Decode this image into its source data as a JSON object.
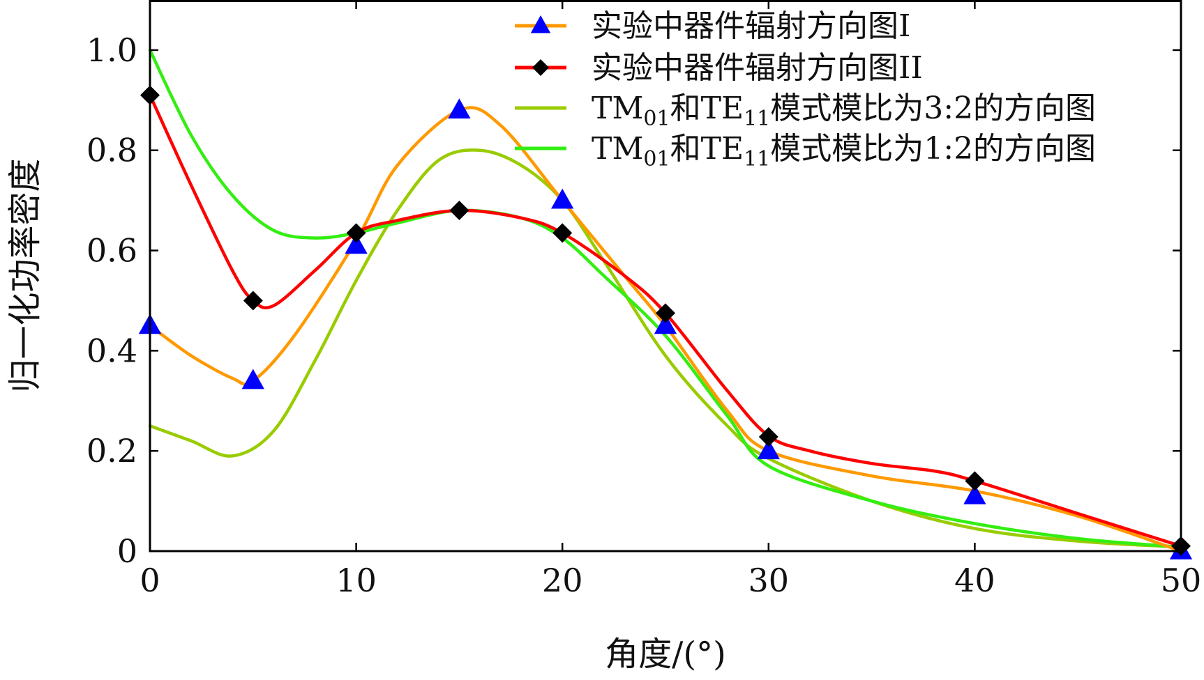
{
  "chart_data": {
    "type": "line",
    "title": "",
    "xlabel": "角度/(°)",
    "ylabel": "归一化功率密度",
    "xlim": [
      0,
      50
    ],
    "ylim": [
      0,
      1.1
    ],
    "x_ticks": [
      0,
      10,
      20,
      30,
      40,
      50
    ],
    "x_tick_labels": [
      "0",
      "10",
      "20",
      "30",
      "40",
      "50"
    ],
    "y_ticks": [
      0,
      0.2,
      0.4,
      0.6,
      0.8,
      1.0
    ],
    "y_tick_labels": [
      "0",
      "0.2",
      "0.4",
      "0.6",
      "0.8",
      "1.0"
    ],
    "grid": false,
    "legend_position": "top-right",
    "series": [
      {
        "name": "实验中器件辐射方向图I",
        "legend_parts": [
          "实验中器件辐射方向图I"
        ],
        "color": "#ff9900",
        "marker": "triangle",
        "marker_color": "#0000ff",
        "x": [
          0,
          2,
          4,
          5,
          7,
          10,
          12,
          15,
          17,
          20,
          23,
          25,
          28,
          30,
          35,
          40,
          45,
          50
        ],
        "values": [
          0.45,
          0.39,
          0.345,
          0.34,
          0.43,
          0.62,
          0.77,
          0.88,
          0.85,
          0.7,
          0.55,
          0.45,
          0.28,
          0.2,
          0.15,
          0.12,
          0.07,
          0.0
        ],
        "marker_x": [
          0,
          5,
          10,
          15,
          20,
          25,
          30,
          40,
          50
        ],
        "marker_values": [
          0.45,
          0.34,
          0.61,
          0.88,
          0.7,
          0.45,
          0.2,
          0.11,
          0.0
        ]
      },
      {
        "name": "实验中器件辐射方向图II",
        "legend_parts": [
          "实验中器件辐射方向图II"
        ],
        "color": "#ff0000",
        "marker": "diamond",
        "marker_color": "#000000",
        "x": [
          0,
          2,
          4,
          5,
          6,
          8,
          10,
          12,
          15,
          18,
          20,
          23,
          25,
          28,
          30,
          32,
          35,
          38,
          40,
          45,
          50
        ],
        "values": [
          0.91,
          0.73,
          0.56,
          0.5,
          0.49,
          0.56,
          0.635,
          0.66,
          0.68,
          0.665,
          0.635,
          0.55,
          0.475,
          0.32,
          0.23,
          0.2,
          0.175,
          0.16,
          0.14,
          0.075,
          0.01
        ],
        "marker_x": [
          0,
          5,
          10,
          15,
          20,
          25,
          30,
          40,
          50
        ],
        "marker_values": [
          0.91,
          0.5,
          0.635,
          0.68,
          0.635,
          0.475,
          0.228,
          0.14,
          0.01
        ]
      },
      {
        "name": "TM01和TE11模式模比为3:2的方向图",
        "legend_parts": [
          "TM",
          "01",
          "和TE",
          "11",
          "模式模比为3:2的方向图"
        ],
        "color": "#99cc00",
        "marker": "none",
        "x": [
          0,
          2,
          4,
          6,
          8,
          10,
          12,
          14,
          16,
          18,
          20,
          22,
          25,
          28,
          30,
          35,
          40,
          45,
          50
        ],
        "values": [
          0.25,
          0.22,
          0.19,
          0.24,
          0.38,
          0.54,
          0.68,
          0.78,
          0.8,
          0.77,
          0.7,
          0.58,
          0.39,
          0.25,
          0.185,
          0.1,
          0.045,
          0.02,
          0.008
        ]
      },
      {
        "name": "TM01和TE11模式模比为1:2的方向图",
        "legend_parts": [
          "TM",
          "01",
          "和TE",
          "11",
          "模式模比为1:2的方向图"
        ],
        "color": "#33ee11",
        "marker": "none",
        "x": [
          0,
          2,
          4,
          6,
          8,
          10,
          12,
          15,
          18,
          20,
          22,
          25,
          28,
          30,
          35,
          40,
          45,
          50
        ],
        "values": [
          1.0,
          0.83,
          0.71,
          0.64,
          0.625,
          0.635,
          0.655,
          0.68,
          0.665,
          0.625,
          0.55,
          0.43,
          0.27,
          0.17,
          0.1,
          0.055,
          0.025,
          0.008
        ]
      }
    ]
  }
}
